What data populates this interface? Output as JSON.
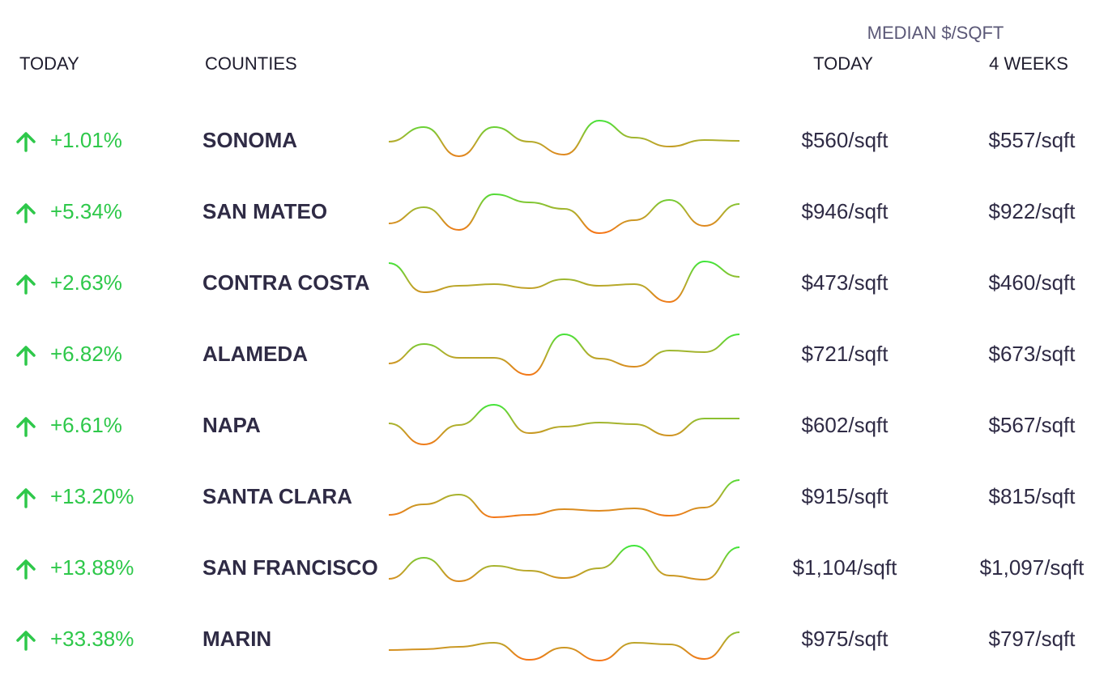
{
  "header": {
    "group_label": "MEDIAN $/SQFT",
    "col_change": "TODAY",
    "col_county": "COUNTIES",
    "col_today": "TODAY",
    "col_weeks": "4 WEEKS"
  },
  "rows": [
    {
      "change": "+1.01%",
      "county": "SONOMA",
      "trend": [
        27,
        45,
        9,
        45,
        27,
        11,
        53,
        32,
        21,
        29,
        28
      ],
      "today": "$560/sqft",
      "four_weeks": "$557/sqft"
    },
    {
      "change": "+5.34%",
      "county": "SAN MATEO",
      "trend": [
        14,
        34,
        6,
        50,
        40,
        32,
        2,
        18,
        43,
        11,
        38
      ],
      "today": "$946/sqft",
      "four_weeks": "$922/sqft"
    },
    {
      "change": "+2.63%",
      "county": "CONTRA COSTA",
      "trend": [
        53,
        17,
        25,
        27,
        22,
        33,
        25,
        27,
        5,
        55,
        36
      ],
      "today": "$473/sqft",
      "four_weeks": "$460/sqft"
    },
    {
      "change": "+6.82%",
      "county": "ALAMEDA",
      "trend": [
        17,
        41,
        24,
        24,
        3,
        53,
        23,
        13,
        33,
        31,
        53
      ],
      "today": "$721/sqft",
      "four_weeks": "$673/sqft"
    },
    {
      "change": "+6.61%",
      "county": "NAPA",
      "trend": [
        31,
        5,
        29,
        54,
        19,
        27,
        32,
        30,
        16,
        37,
        37
      ],
      "today": "$602/sqft",
      "four_weeks": "$567/sqft"
    },
    {
      "change": "+13.20%",
      "county": "SANTA CLARA",
      "trend": [
        6,
        19,
        31,
        3,
        6,
        13,
        11,
        14,
        5,
        15,
        49
      ],
      "today": "$915/sqft",
      "four_weeks": "$815/sqft"
    },
    {
      "change": "+13.88%",
      "county": "SAN FRANCISCO",
      "trend": [
        15,
        41,
        12,
        31,
        25,
        16,
        28,
        56,
        19,
        14,
        54
      ],
      "today": "$1,104/sqft",
      "four_weeks": "$1,097/sqft"
    },
    {
      "change": "+33.38%",
      "county": "MARIN",
      "trend": [
        15,
        16,
        19,
        24,
        3,
        18,
        2,
        24,
        22,
        4,
        37
      ],
      "today": "$975/sqft",
      "four_weeks": "$797/sqft"
    }
  ]
}
